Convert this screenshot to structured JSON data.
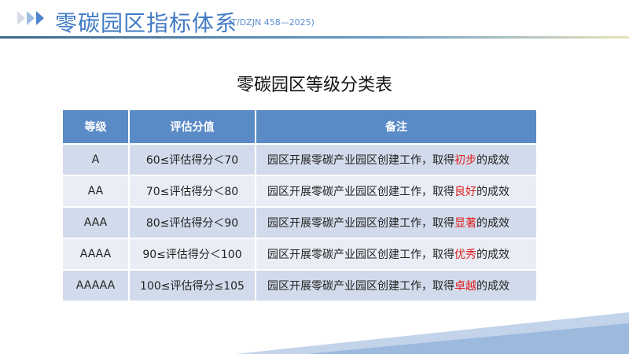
{
  "header": {
    "title": "零碳园区指标体系",
    "standard": "(T/DZJN 458—2025)",
    "chevron_icon": "triple-chevron-right-icon"
  },
  "table_title": "零碳园区等级分类表",
  "table": {
    "headers": [
      "等级",
      "评估分值",
      "备注"
    ],
    "rows": [
      {
        "grade": "A",
        "score": "60≤评估得分＜70",
        "remark_prefix": "园区开展零碳产业园区创建工作，取得",
        "remark_highlight": "初步",
        "remark_suffix": "的成效"
      },
      {
        "grade": "AA",
        "score": "70≤评估得分＜80",
        "remark_prefix": "园区开展零碳产业园区创建工作，取得",
        "remark_highlight": "良好",
        "remark_suffix": "的成效"
      },
      {
        "grade": "AAA",
        "score": "80≤评估得分＜90",
        "remark_prefix": "园区开展零碳产业园区创建工作，取得",
        "remark_highlight": "显著",
        "remark_suffix": "的成效"
      },
      {
        "grade": "AAAA",
        "score": "90≤评估得分＜100",
        "remark_prefix": "园区开展零碳产业园区创建工作，取得",
        "remark_highlight": "优秀",
        "remark_suffix": "的成效"
      },
      {
        "grade": "AAAAA",
        "score": "100≤评估得分≤105",
        "remark_prefix": "园区开展零碳产业园区创建工作，取得",
        "remark_highlight": "卓越",
        "remark_suffix": "的成效"
      }
    ]
  },
  "colors": {
    "header_bg": "#5b8bc7",
    "row_odd": "#d2dbeb",
    "row_even": "#e9eef6",
    "highlight": "#e02020",
    "title": "#3f7ac4"
  }
}
